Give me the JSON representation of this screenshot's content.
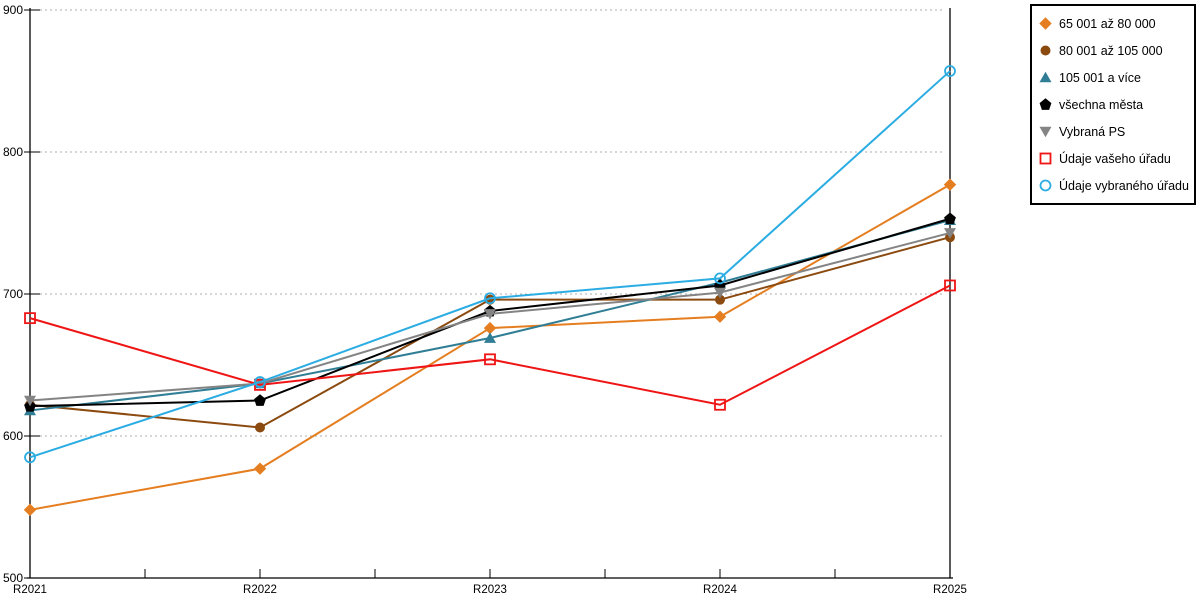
{
  "chart_data": {
    "type": "line",
    "title": "",
    "xlabel": "",
    "ylabel": "",
    "categories": [
      "R2021",
      "R2022",
      "R2023",
      "R2024",
      "R2025"
    ],
    "ylim": [
      500,
      900
    ],
    "yticks": [
      "500",
      "600",
      "700",
      "800",
      "900"
    ],
    "grid": "horizontal-dashed",
    "legend_position": "top-right",
    "series": [
      {
        "name": "65 001 až 80 000",
        "color": "#E57E20",
        "marker": "diamond",
        "hollow": false,
        "values": [
          548,
          577,
          676,
          684,
          777
        ]
      },
      {
        "name": "80 001 až 105 000",
        "color": "#8B4A0F",
        "marker": "circle",
        "hollow": false,
        "values": [
          622,
          606,
          696,
          696,
          740
        ]
      },
      {
        "name": "105 001 a více",
        "color": "#307E95",
        "marker": "triangle-up",
        "hollow": false,
        "values": [
          618,
          637,
          669,
          708,
          752
        ]
      },
      {
        "name": "všechna města",
        "color": "#000000",
        "marker": "pentagon",
        "hollow": false,
        "values": [
          621,
          625,
          688,
          706,
          753
        ]
      },
      {
        "name": "Vybraná PS",
        "color": "#848484",
        "marker": "triangle-down",
        "hollow": false,
        "values": [
          625,
          637,
          686,
          701,
          743
        ]
      },
      {
        "name": "Údaje vašeho úřadu",
        "color": "#EF1515",
        "marker": "square",
        "hollow": true,
        "values": [
          683,
          636,
          654,
          622,
          706
        ]
      },
      {
        "name": "Údaje vybraného úřadu",
        "color": "#2BACE2",
        "marker": "circle",
        "hollow": true,
        "values": [
          585,
          638,
          697,
          711,
          857
        ]
      }
    ]
  }
}
